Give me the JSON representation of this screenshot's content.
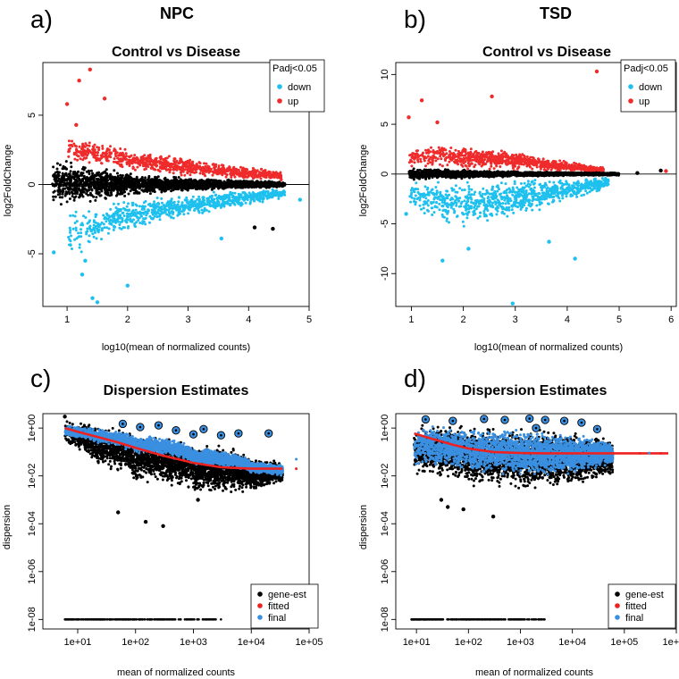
{
  "colors": {
    "up": "#ef2b2b",
    "down": "#1ec0ee",
    "black": "#000000",
    "fitted": "#ee2020",
    "final": "#3a8fe0"
  },
  "panels": [
    {
      "letter": "a)",
      "group": "NPC"
    },
    {
      "letter": "b)",
      "group": "TSD"
    },
    {
      "letter": "c)",
      "group": ""
    },
    {
      "letter": "d)",
      "group": ""
    }
  ],
  "chart_data": [
    {
      "type": "scatter",
      "id": "a",
      "title": "Control vs Disease",
      "xlabel": "log10(mean of normalized counts)",
      "ylabel": "log2FoldChange",
      "xlim": [
        0.6,
        5.0
      ],
      "ylim": [
        -8.8,
        8.8
      ],
      "xticks": [
        1,
        2,
        3,
        4,
        5
      ],
      "yticks": [
        -5,
        0,
        5
      ],
      "hline": 0,
      "legend": {
        "title": "Padj<0.05",
        "position": "top-right",
        "entries": [
          {
            "label": "down",
            "color": "#1ec0ee"
          },
          {
            "label": "up",
            "color": "#ef2b2b"
          }
        ]
      },
      "groups": [
        {
          "name": "not significant",
          "color": "#000000",
          "bands": [
            {
              "x": 0.75,
              "lo": -1.5,
              "hi": 1.9
            },
            {
              "x": 1.0,
              "lo": -1.7,
              "hi": 1.9
            },
            {
              "x": 1.5,
              "lo": -1.3,
              "hi": 1.3
            },
            {
              "x": 2.0,
              "lo": -0.9,
              "hi": 0.9
            },
            {
              "x": 3.0,
              "lo": -0.5,
              "hi": 0.5
            },
            {
              "x": 4.0,
              "lo": -0.3,
              "hi": 0.3
            },
            {
              "x": 4.6,
              "lo": -0.2,
              "hi": 0.2
            }
          ]
        },
        {
          "name": "up",
          "color": "#ef2b2b",
          "bands": [
            {
              "x": 1.0,
              "lo": 1.6,
              "hi": 3.5
            },
            {
              "x": 1.5,
              "lo": 1.2,
              "hi": 3.2
            },
            {
              "x": 2.0,
              "lo": 0.9,
              "hi": 2.7
            },
            {
              "x": 3.0,
              "lo": 0.5,
              "hi": 2.0
            },
            {
              "x": 4.0,
              "lo": 0.35,
              "hi": 1.3
            },
            {
              "x": 4.55,
              "lo": 0.3,
              "hi": 1.0
            }
          ]
        },
        {
          "name": "down",
          "color": "#1ec0ee",
          "bands": [
            {
              "x": 1.0,
              "lo": -5.5,
              "hi": -1.8
            },
            {
              "x": 1.5,
              "lo": -4.5,
              "hi": -1.3
            },
            {
              "x": 2.0,
              "lo": -3.5,
              "hi": -0.9
            },
            {
              "x": 3.0,
              "lo": -2.5,
              "hi": -0.6
            },
            {
              "x": 4.0,
              "lo": -1.5,
              "hi": -0.35
            },
            {
              "x": 4.6,
              "lo": -1.0,
              "hi": -0.3
            }
          ]
        }
      ],
      "outliers": [
        {
          "x": 1.38,
          "y": 8.3,
          "color": "#ef2b2b"
        },
        {
          "x": 1.2,
          "y": 7.5,
          "color": "#ef2b2b"
        },
        {
          "x": 1.62,
          "y": 6.2,
          "color": "#ef2b2b"
        },
        {
          "x": 1.0,
          "y": 5.8,
          "color": "#ef2b2b"
        },
        {
          "x": 1.15,
          "y": 4.3,
          "color": "#ef2b2b"
        },
        {
          "x": 0.78,
          "y": -4.9,
          "color": "#1ec0ee"
        },
        {
          "x": 1.25,
          "y": -6.5,
          "color": "#1ec0ee"
        },
        {
          "x": 1.42,
          "y": -8.2,
          "color": "#1ec0ee"
        },
        {
          "x": 1.5,
          "y": -8.5,
          "color": "#1ec0ee"
        },
        {
          "x": 2.0,
          "y": -7.3,
          "color": "#1ec0ee"
        },
        {
          "x": 1.3,
          "y": -5.5,
          "color": "#1ec0ee"
        },
        {
          "x": 3.55,
          "y": -3.9,
          "color": "#1ec0ee"
        },
        {
          "x": 4.85,
          "y": -1.1,
          "color": "#1ec0ee"
        },
        {
          "x": 4.1,
          "y": -3.1,
          "color": "#000000"
        },
        {
          "x": 4.4,
          "y": -3.2,
          "color": "#000000"
        }
      ]
    },
    {
      "type": "scatter",
      "id": "b",
      "title": "Control vs Disease",
      "xlabel": "log10(mean of normalized counts)",
      "ylabel": "log2FoldChange",
      "xlim": [
        0.7,
        6.1
      ],
      "ylim": [
        -13.3,
        11.2
      ],
      "xticks": [
        1,
        2,
        3,
        4,
        5,
        6
      ],
      "yticks": [
        -10,
        -5,
        0,
        5,
        10
      ],
      "hline": 0,
      "legend": {
        "title": "Padj<0.05",
        "position": "top-right",
        "entries": [
          {
            "label": "down",
            "color": "#1ec0ee"
          },
          {
            "label": "up",
            "color": "#ef2b2b"
          }
        ]
      },
      "groups": [
        {
          "name": "up",
          "color": "#ef2b2b",
          "bands": [
            {
              "x": 0.95,
              "lo": 0.6,
              "hi": 2.7
            },
            {
              "x": 1.5,
              "lo": 0.5,
              "hi": 3.2
            },
            {
              "x": 2.0,
              "lo": 0.4,
              "hi": 3.0
            },
            {
              "x": 3.0,
              "lo": 0.3,
              "hi": 2.3
            },
            {
              "x": 4.0,
              "lo": 0.2,
              "hi": 1.3
            },
            {
              "x": 4.7,
              "lo": 0.15,
              "hi": 0.7
            }
          ]
        },
        {
          "name": "down",
          "color": "#1ec0ee",
          "bands": [
            {
              "x": 0.95,
              "lo": -3.5,
              "hi": -0.6
            },
            {
              "x": 1.5,
              "lo": -4.8,
              "hi": -0.5
            },
            {
              "x": 2.0,
              "lo": -5.5,
              "hi": -0.4
            },
            {
              "x": 3.0,
              "lo": -4.8,
              "hi": -0.3
            },
            {
              "x": 4.0,
              "lo": -3.0,
              "hi": -0.2
            },
            {
              "x": 4.8,
              "lo": -1.5,
              "hi": -0.15
            }
          ]
        },
        {
          "name": "not significant",
          "color": "#000000",
          "bands": [
            {
              "x": 0.95,
              "lo": -0.7,
              "hi": 0.7
            },
            {
              "x": 2.0,
              "lo": -0.45,
              "hi": 0.45
            },
            {
              "x": 3.0,
              "lo": -0.3,
              "hi": 0.3
            },
            {
              "x": 4.0,
              "lo": -0.2,
              "hi": 0.2
            },
            {
              "x": 5.0,
              "lo": -0.15,
              "hi": 0.15
            }
          ]
        }
      ],
      "outliers": [
        {
          "x": 4.57,
          "y": 10.3,
          "color": "#ef2b2b"
        },
        {
          "x": 1.2,
          "y": 7.4,
          "color": "#ef2b2b"
        },
        {
          "x": 2.55,
          "y": 7.8,
          "color": "#ef2b2b"
        },
        {
          "x": 0.95,
          "y": 5.7,
          "color": "#ef2b2b"
        },
        {
          "x": 1.5,
          "y": 5.2,
          "color": "#ef2b2b"
        },
        {
          "x": 2.95,
          "y": -13.0,
          "color": "#1ec0ee"
        },
        {
          "x": 1.6,
          "y": -8.7,
          "color": "#1ec0ee"
        },
        {
          "x": 4.15,
          "y": -8.5,
          "color": "#1ec0ee"
        },
        {
          "x": 3.65,
          "y": -6.8,
          "color": "#1ec0ee"
        },
        {
          "x": 2.1,
          "y": -7.5,
          "color": "#1ec0ee"
        },
        {
          "x": 0.9,
          "y": -4.0,
          "color": "#1ec0ee"
        },
        {
          "x": 5.35,
          "y": 0.1,
          "color": "#000000"
        },
        {
          "x": 5.8,
          "y": 0.35,
          "color": "#000000"
        },
        {
          "x": 5.9,
          "y": 0.3,
          "color": "#ef2b2b"
        }
      ]
    },
    {
      "type": "scatter",
      "id": "c",
      "title": "Dispersion Estimates",
      "xlabel": "mean of normalized counts",
      "ylabel": "dispersion",
      "xscale": "log",
      "yscale": "log",
      "xlim": [
        2.5,
        100000
      ],
      "ylim": [
        4e-09,
        4
      ],
      "xticks": [
        10,
        100,
        1000,
        10000,
        100000
      ],
      "xtick_labels": [
        "1e+01",
        "1e+02",
        "1e+03",
        "1e+04",
        "1e+05"
      ],
      "yticks": [
        1e-08,
        1e-06,
        0.0001,
        0.01,
        1
      ],
      "ytick_labels": [
        "1e-08",
        "1e-06",
        "1e-04",
        "1e-02",
        "1e+00"
      ],
      "legend": {
        "position": "bottom-right",
        "entries": [
          {
            "label": "gene-est",
            "color": "#000000"
          },
          {
            "label": "fitted",
            "color": "#ee2020"
          },
          {
            "label": "final",
            "color": "#3a8fe0"
          }
        ]
      },
      "gene_est": {
        "bands": [
          {
            "x": 6,
            "lo": 0.15,
            "hi": 2.5
          },
          {
            "x": 20,
            "lo": 0.02,
            "hi": 1.5
          },
          {
            "x": 100,
            "lo": 0.004,
            "hi": 0.6
          },
          {
            "x": 1000,
            "lo": 0.0015,
            "hi": 0.25
          },
          {
            "x": 10000,
            "lo": 0.002,
            "hi": 0.06
          },
          {
            "x": 35000,
            "lo": 0.005,
            "hi": 0.04
          }
        ],
        "zero_row": {
          "y": 1e-08,
          "x_from": 6,
          "x_to": 3000
        }
      },
      "final": {
        "bands": [
          {
            "x": 6,
            "lo": 0.4,
            "hi": 1.5
          },
          {
            "x": 20,
            "lo": 0.2,
            "hi": 1.0
          },
          {
            "x": 100,
            "lo": 0.08,
            "hi": 0.5
          },
          {
            "x": 1000,
            "lo": 0.025,
            "hi": 0.15
          },
          {
            "x": 10000,
            "lo": 0.012,
            "hi": 0.04
          },
          {
            "x": 35000,
            "lo": 0.01,
            "hi": 0.03
          }
        ]
      },
      "fitted_curve": {
        "x": [
          6,
          10,
          20,
          50,
          100,
          300,
          1000,
          3000,
          10000,
          35000
        ],
        "y": [
          1.0,
          0.7,
          0.45,
          0.25,
          0.15,
          0.07,
          0.035,
          0.023,
          0.02,
          0.02
        ]
      },
      "outliers": [
        {
          "x": 6,
          "y": 3.0,
          "color": "#000000"
        },
        {
          "x": 150,
          "y": 0.00012,
          "color": "#000000"
        },
        {
          "x": 300,
          "y": 8e-05,
          "color": "#000000"
        },
        {
          "x": 50,
          "y": 0.0003,
          "color": "#000000"
        },
        {
          "x": 1200,
          "y": 0.001,
          "color": "#000000"
        }
      ],
      "circled": [
        {
          "x": 60,
          "y": 1.5
        },
        {
          "x": 120,
          "y": 1.1
        },
        {
          "x": 250,
          "y": 1.3
        },
        {
          "x": 500,
          "y": 0.8
        },
        {
          "x": 1000,
          "y": 0.55
        },
        {
          "x": 1500,
          "y": 0.9
        },
        {
          "x": 3000,
          "y": 0.5
        },
        {
          "x": 6000,
          "y": 0.6
        },
        {
          "x": 20000,
          "y": 0.6
        }
      ],
      "extra_points": [
        {
          "x": 60000,
          "y": 0.05,
          "color": "#3a8fe0"
        },
        {
          "x": 60000,
          "y": 0.02,
          "color": "#ee2020"
        }
      ]
    },
    {
      "type": "scatter",
      "id": "d",
      "title": "Dispersion Estimates",
      "xlabel": "mean of normalized counts",
      "ylabel": "dispersion",
      "xscale": "log",
      "yscale": "log",
      "xlim": [
        4,
        1000000
      ],
      "ylim": [
        4e-09,
        4
      ],
      "xticks": [
        10,
        100,
        1000,
        10000,
        100000,
        1000000
      ],
      "xtick_labels": [
        "1e+01",
        "1e+02",
        "1e+03",
        "1e+04",
        "1e+05",
        "1e+06"
      ],
      "yticks": [
        1e-08,
        1e-06,
        0.0001,
        0.01,
        1
      ],
      "ytick_labels": [
        "1e-08",
        "1e-06",
        "1e-04",
        "1e-02",
        "1e+00"
      ],
      "legend": {
        "position": "bottom-right",
        "entries": [
          {
            "label": "gene-est",
            "color": "#000000"
          },
          {
            "label": "fitted",
            "color": "#ee2020"
          },
          {
            "label": "final",
            "color": "#3a8fe0"
          }
        ]
      },
      "gene_est": {
        "bands": [
          {
            "x": 9,
            "lo": 0.008,
            "hi": 2.0
          },
          {
            "x": 100,
            "lo": 0.003,
            "hi": 1.5
          },
          {
            "x": 1000,
            "lo": 0.002,
            "hi": 1.2
          },
          {
            "x": 10000,
            "lo": 0.003,
            "hi": 0.8
          },
          {
            "x": 60000,
            "lo": 0.01,
            "hi": 0.3
          }
        ],
        "zero_row": {
          "y": 1e-08,
          "x_from": 8,
          "x_to": 3000
        }
      },
      "final": {
        "bands": [
          {
            "x": 9,
            "lo": 0.02,
            "hi": 1.5
          },
          {
            "x": 100,
            "lo": 0.01,
            "hi": 1.2
          },
          {
            "x": 1000,
            "lo": 0.008,
            "hi": 1.0
          },
          {
            "x": 10000,
            "lo": 0.01,
            "hi": 0.6
          },
          {
            "x": 60000,
            "lo": 0.03,
            "hi": 0.2
          }
        ]
      },
      "fitted_curve": {
        "x": [
          9,
          20,
          50,
          100,
          300,
          1000,
          3000,
          10000,
          100000,
          700000
        ],
        "y": [
          0.6,
          0.35,
          0.2,
          0.14,
          0.1,
          0.09,
          0.088,
          0.088,
          0.088,
          0.088
        ]
      },
      "outliers": [
        {
          "x": 40,
          "y": 0.0005,
          "color": "#000000"
        },
        {
          "x": 80,
          "y": 0.0004,
          "color": "#000000"
        },
        {
          "x": 300,
          "y": 0.0002,
          "color": "#000000"
        },
        {
          "x": 30,
          "y": 0.001,
          "color": "#000000"
        }
      ],
      "circled": [
        {
          "x": 15,
          "y": 2.3
        },
        {
          "x": 50,
          "y": 2.0
        },
        {
          "x": 200,
          "y": 2.4
        },
        {
          "x": 500,
          "y": 2.2
        },
        {
          "x": 1500,
          "y": 2.5
        },
        {
          "x": 3000,
          "y": 2.2
        },
        {
          "x": 7000,
          "y": 2.0
        },
        {
          "x": 15000,
          "y": 1.7
        },
        {
          "x": 30000,
          "y": 0.9
        },
        {
          "x": 2000,
          "y": 1.0
        }
      ],
      "extra_points": [
        {
          "x": 200000,
          "y": 0.088,
          "color": "#ee2020"
        },
        {
          "x": 500000,
          "y": 0.088,
          "color": "#ee2020"
        },
        {
          "x": 300000,
          "y": 0.09,
          "color": "#3a8fe0"
        }
      ]
    }
  ]
}
